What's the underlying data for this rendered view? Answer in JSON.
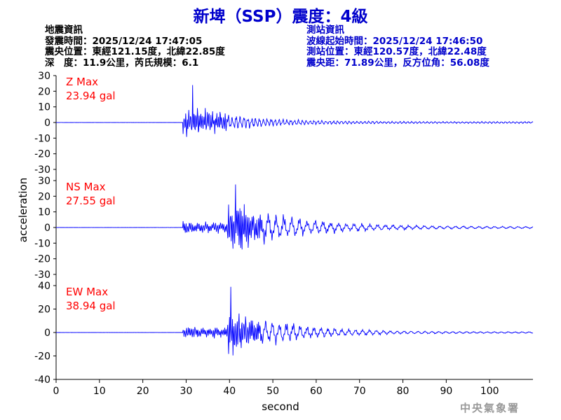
{
  "header": {
    "title": "新埤（SSP）震度：4級"
  },
  "earthquake_info": {
    "heading": "地震資訊",
    "origin_time": "發震時間：2025/12/24 17:47:05",
    "epicenter": "震央位置：東經121.15度，北緯22.85度",
    "depth_magnitude": "深　度：11.9公里，芮氏規模：6.1"
  },
  "station_info": {
    "heading": "測站資訊",
    "wave_start": "波線起始時間：2025/12/24 17:46:50",
    "location": "測站位置：東經120.57度，北緯22.48度",
    "distance_azimuth": "震央距：71.89公里，反方位角：56.08度"
  },
  "credit": "中央氣象署",
  "colors": {
    "title": "#0000cc",
    "trace": "#0000ff",
    "max_label": "#ff0000",
    "axis": "#000000"
  },
  "chart_data": {
    "type": "line",
    "xlabel": "second",
    "ylabel": "acceleration",
    "xlim": [
      0,
      110
    ],
    "x_ticks": [
      0,
      10,
      20,
      30,
      40,
      50,
      60,
      70,
      80,
      90,
      100
    ],
    "panels": [
      {
        "component": "Z",
        "max_label": "Z Max",
        "max_value": "23.94 gal",
        "ylim": [
          -30,
          30
        ],
        "y_ticks": [
          30,
          20,
          10,
          0,
          -10,
          -20,
          -30
        ],
        "series": [
          {
            "peak": 23.94,
            "p_arrival": 29.3,
            "s_arrival": 31.5,
            "amp_quiet": 0.1,
            "amp_p": 9,
            "amp_s": 11,
            "decay": 0.085,
            "period": 0.9,
            "seed": 11
          }
        ]
      },
      {
        "component": "NS",
        "max_label": "NS Max",
        "max_value": "27.55 gal",
        "ylim": [
          -30,
          30
        ],
        "y_ticks": [
          30,
          20,
          10,
          0,
          -10,
          -20,
          -30
        ],
        "series": [
          {
            "peak": 27.55,
            "p_arrival": 29.3,
            "s_arrival": 39.5,
            "amp_quiet": 0.1,
            "amp_p": 4,
            "amp_s": 20,
            "decay": 0.07,
            "period": 1.8,
            "seed": 23
          }
        ]
      },
      {
        "component": "EW",
        "max_label": "EW Max",
        "max_value": "38.94 gal",
        "ylim": [
          -40,
          40
        ],
        "y_ticks": [
          40,
          20,
          0,
          -20,
          -40
        ],
        "series": [
          {
            "peak": 38.94,
            "p_arrival": 29.3,
            "s_arrival": 39.5,
            "amp_quiet": 0.1,
            "amp_p": 5,
            "amp_s": 24,
            "decay": 0.075,
            "period": 1.6,
            "seed": 37
          }
        ]
      }
    ]
  }
}
